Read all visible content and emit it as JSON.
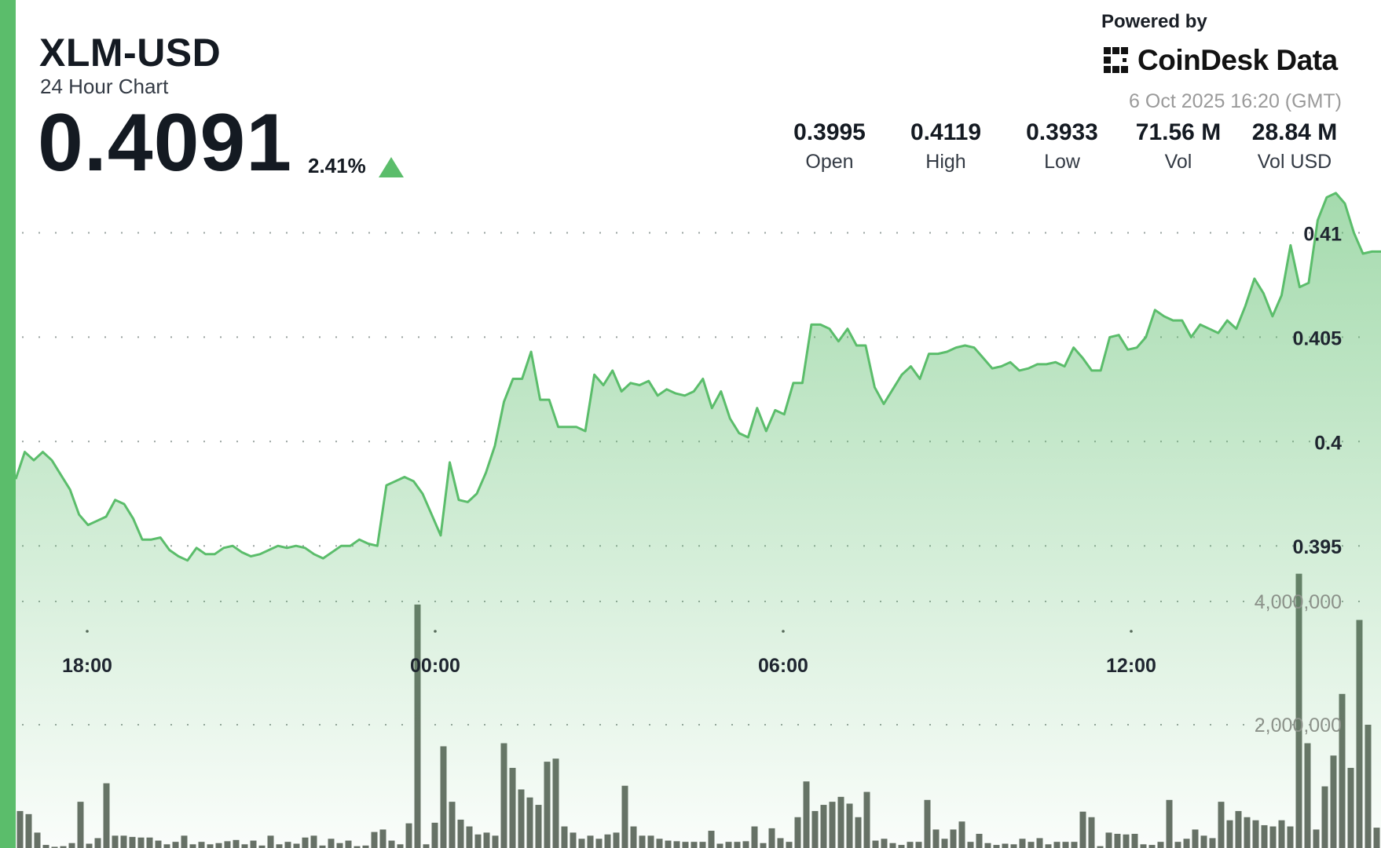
{
  "header": {
    "ticker": "XLM-USD",
    "subtitle": "24 Hour Chart",
    "price": "0.4091",
    "change": "2.41%",
    "change_direction_icon": "triangle-up-icon"
  },
  "branding": {
    "powered_by": "Powered by",
    "brand_name": "CoinDesk Data",
    "logo_icon": "coindesk-logo-icon",
    "timestamp": "6 Oct 2025 16:20 (GMT)"
  },
  "stats": [
    {
      "value": "0.3995",
      "label": "Open"
    },
    {
      "value": "0.4119",
      "label": "High"
    },
    {
      "value": "0.3933",
      "label": "Low"
    },
    {
      "value": "71.56 M",
      "label": "Vol"
    },
    {
      "value": "28.84 M",
      "label": "Vol USD"
    }
  ],
  "colors": {
    "accent": "#5bbd6b",
    "line": "#5bbd6b",
    "volume_bar": "#676e66",
    "text": "#141a22"
  },
  "chart_data": [
    {
      "type": "area",
      "title": "",
      "xlabel": "",
      "ylabel": "",
      "x_ticks": [
        "18:00",
        "00:00",
        "06:00",
        "12:00"
      ],
      "y_ticks": [
        0.395,
        0.4,
        0.405,
        0.41
      ],
      "y_tick_labels": [
        "0.395",
        "0.4",
        "0.405",
        "0.41"
      ],
      "ylim": [
        0.39275,
        0.4125
      ],
      "grid": "horizontal dotted",
      "series": [
        {
          "values": [
            0.3982,
            0.3995,
            0.3991,
            0.3995,
            0.3991,
            0.3984,
            0.3977,
            0.3965,
            0.396,
            0.3962,
            0.3964,
            0.3972,
            0.397,
            0.3963,
            0.3953,
            0.3953,
            0.3954,
            0.3948,
            0.3945,
            0.3943,
            0.3949,
            0.3946,
            0.3946,
            0.3949,
            0.395,
            0.3947,
            0.3945,
            0.3946,
            0.3948,
            0.395,
            0.3949,
            0.395,
            0.3949,
            0.3946,
            0.3944,
            0.3947,
            0.395,
            0.395,
            0.3953,
            0.3951,
            0.395,
            0.3979,
            0.3981,
            0.3983,
            0.3981,
            0.3975,
            0.3965,
            0.3955,
            0.399,
            0.3972,
            0.3971,
            0.3975,
            0.3985,
            0.3998,
            0.4019,
            0.403,
            0.403,
            0.4043,
            0.402,
            0.402,
            0.4007,
            0.4007,
            0.4007,
            0.4005,
            0.4032,
            0.4027,
            0.4034,
            0.4024,
            0.4028,
            0.4027,
            0.4029,
            0.4022,
            0.4025,
            0.4023,
            0.4022,
            0.4024,
            0.403,
            0.4016,
            0.4024,
            0.4011,
            0.4004,
            0.4002,
            0.4016,
            0.4005,
            0.4015,
            0.4013,
            0.4028,
            0.4028,
            0.4056,
            0.4056,
            0.4054,
            0.4048,
            0.4054,
            0.4046,
            0.4046,
            0.4026,
            0.4018,
            0.4025,
            0.4032,
            0.4036,
            0.403,
            0.4042,
            0.4042,
            0.4043,
            0.4045,
            0.4046,
            0.4045,
            0.404,
            0.4035,
            0.4036,
            0.4038,
            0.4034,
            0.4035,
            0.4037,
            0.4037,
            0.4038,
            0.4036,
            0.4045,
            0.404,
            0.4034,
            0.4034,
            0.405,
            0.4051,
            0.4044,
            0.4045,
            0.405,
            0.4063,
            0.406,
            0.4058,
            0.4058,
            0.405,
            0.4056,
            0.4054,
            0.4052,
            0.4058,
            0.4054,
            0.4065,
            0.4078,
            0.4071,
            0.406,
            0.407,
            0.4094,
            0.4074,
            0.4076,
            0.4106,
            0.4117,
            0.4119,
            0.4114,
            0.41,
            0.409,
            0.4091,
            0.4091
          ]
        },
        {
          "name": "",
          "type": "bar",
          "axis": "secondary",
          "y_ticks": [
            2000000,
            4000000
          ],
          "y_tick_labels": [
            "2,000,000",
            "4,000,000"
          ],
          "values": [
            600000,
            550000,
            250000,
            50000,
            20000,
            30000,
            80000,
            750000,
            70000,
            160000,
            1050000,
            200000,
            200000,
            180000,
            170000,
            170000,
            120000,
            60000,
            100000,
            200000,
            60000,
            100000,
            60000,
            80000,
            110000,
            130000,
            60000,
            120000,
            40000,
            200000,
            60000,
            100000,
            70000,
            170000,
            200000,
            40000,
            150000,
            80000,
            120000,
            30000,
            40000,
            260000,
            300000,
            120000,
            60000,
            400000,
            3950000,
            60000,
            410000,
            1650000,
            750000,
            460000,
            350000,
            220000,
            250000,
            200000,
            1700000,
            1300000,
            950000,
            820000,
            700000,
            1400000,
            1450000,
            350000,
            250000,
            150000,
            200000,
            150000,
            220000,
            250000,
            1010000,
            350000,
            200000,
            200000,
            150000,
            120000,
            110000,
            100000,
            100000,
            100000,
            280000,
            70000,
            100000,
            100000,
            110000,
            350000,
            80000,
            320000,
            160000,
            100000,
            500000,
            1080000,
            600000,
            700000,
            750000,
            830000,
            720000,
            500000,
            910000,
            120000,
            150000,
            80000,
            50000,
            100000,
            100000,
            780000,
            300000,
            150000,
            300000,
            430000,
            100000,
            230000,
            80000,
            50000,
            70000,
            60000,
            150000,
            100000,
            160000,
            60000,
            100000,
            100000,
            100000,
            590000,
            500000,
            30000,
            250000,
            230000,
            220000,
            230000,
            60000,
            50000,
            100000,
            780000,
            100000,
            150000,
            300000,
            200000,
            160000,
            750000,
            450000,
            600000,
            500000,
            450000,
            370000,
            350000,
            450000,
            350000,
            4450000,
            1700000,
            300000,
            1000000,
            1500000,
            2500000,
            1300000,
            3700000,
            2000000,
            330000
          ]
        }
      ]
    }
  ]
}
